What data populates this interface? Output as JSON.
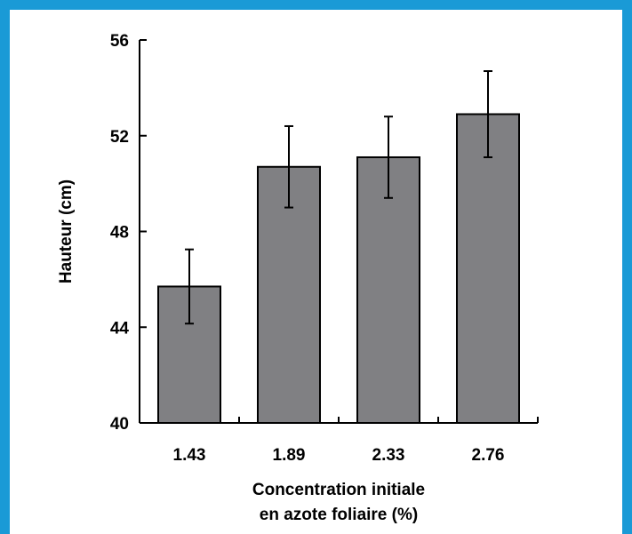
{
  "chart_data": {
    "type": "bar",
    "categories": [
      "1.43",
      "1.89",
      "2.33",
      "2.76"
    ],
    "values": [
      45.7,
      50.7,
      51.1,
      52.9
    ],
    "error": [
      1.55,
      1.7,
      1.7,
      1.8
    ],
    "xlabel_lines": [
      "Concentration initiale",
      "en azote foliaire (%)"
    ],
    "ylabel": "Hauteur (cm)",
    "ylim": [
      40,
      56
    ],
    "yticks": [
      "40",
      "44",
      "48",
      "52",
      "56"
    ],
    "grid": false,
    "legend": "none"
  },
  "colors": {
    "frame": "#1a9ad6",
    "bar_fill": "#808083",
    "bar_stroke": "#000000"
  }
}
